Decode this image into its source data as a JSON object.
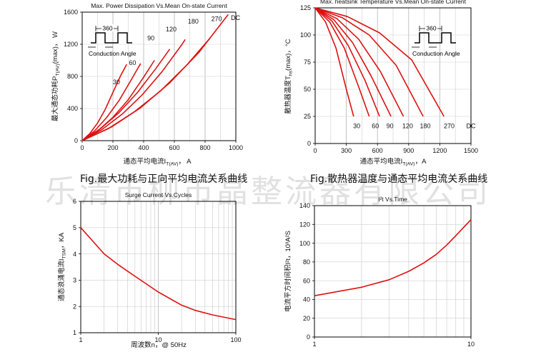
{
  "watermark": "乐清市柳市晶整流器有限公司",
  "captions": {
    "left": "Fig.最大功耗与正向平均电流关系曲线",
    "right": "Fig.散热器温度与通态平均电流关系曲线"
  },
  "chart_data": [
    {
      "id": "power",
      "type": "line",
      "title": "Max. Power Dissipation Vs.Mean On-state Current",
      "xlabel": "通态平均电流IT(AV)， A",
      "ylabel": "最大通态功耗PT(AV)(max)， W",
      "xlim": [
        0,
        1000
      ],
      "ylim": [
        0,
        1600
      ],
      "xticks": [
        0,
        200,
        400,
        600,
        800,
        1000
      ],
      "yticks": [
        0,
        400,
        800,
        1200,
        1600
      ],
      "xscale": "linear",
      "series": [
        {
          "name": "30",
          "label_at": [
            250,
            440
          ],
          "x": [
            0,
            50,
            100,
            150,
            200,
            250,
            290
          ],
          "y": [
            0,
            90,
            220,
            390,
            600,
            810,
            950
          ]
        },
        {
          "name": "60",
          "label_at": [
            380,
            590
          ],
          "x": [
            0,
            80,
            160,
            240,
            320,
            380
          ],
          "y": [
            0,
            120,
            290,
            500,
            760,
            960
          ]
        },
        {
          "name": "90",
          "label_at": [
            530,
            780
          ],
          "x": [
            0,
            100,
            200,
            300,
            400,
            470
          ],
          "y": [
            0,
            120,
            290,
            510,
            790,
            1000
          ]
        },
        {
          "name": "120",
          "label_at": [
            680,
            850
          ],
          "x": [
            0,
            120,
            240,
            360,
            480,
            570
          ],
          "y": [
            0,
            150,
            350,
            600,
            900,
            1140
          ]
        },
        {
          "name": "180",
          "label_at": [
            860,
            910
          ],
          "x": [
            0,
            130,
            260,
            390,
            520,
            650,
            670
          ],
          "y": [
            0,
            140,
            330,
            570,
            860,
            1200,
            1260
          ]
        },
        {
          "name": "270",
          "label_at": [
            1050,
            930
          ],
          "x": [
            0,
            170,
            340,
            510,
            680,
            820,
            830
          ],
          "y": [
            0,
            150,
            360,
            620,
            940,
            1250,
            1270
          ]
        },
        {
          "name": "DC",
          "label_at": [
            1210,
            940
          ],
          "x": [
            0,
            190,
            380,
            570,
            760,
            950
          ],
          "y": [
            0,
            170,
            410,
            720,
            1100,
            1570
          ]
        }
      ],
      "inset": {
        "angle_text": "360",
        "label": "Conduction Angle"
      }
    },
    {
      "id": "temp",
      "type": "line",
      "title": "Max. heatsink Temperature Vs.Mean On-state Current",
      "xlabel": "通态平均电流IT(AV)，A",
      "ylabel": "散热器温度Ths(max)，°C",
      "xlim": [
        0,
        1500
      ],
      "ylim": [
        0,
        125
      ],
      "xticks": [
        0,
        300,
        600,
        900,
        1200,
        1500
      ],
      "yticks": [
        0,
        25,
        50,
        75,
        100,
        125
      ],
      "xscale": "linear",
      "series": [
        {
          "name": "30",
          "x": [
            0,
            100,
            200,
            300,
            370
          ],
          "y": [
            125,
            112,
            88,
            50,
            25
          ]
        },
        {
          "name": "60",
          "x": [
            0,
            140,
            280,
            420,
            520
          ],
          "y": [
            125,
            112,
            88,
            52,
            25
          ]
        },
        {
          "name": "90",
          "x": [
            0,
            160,
            320,
            480,
            620
          ],
          "y": [
            125,
            113,
            90,
            58,
            25
          ]
        },
        {
          "name": "120",
          "x": [
            0,
            180,
            360,
            540,
            730
          ],
          "y": [
            125,
            114,
            93,
            62,
            25
          ]
        },
        {
          "name": "180",
          "x": [
            0,
            210,
            420,
            630,
            850
          ],
          "y": [
            125,
            115,
            96,
            66,
            25
          ]
        },
        {
          "name": "270",
          "x": [
            0,
            260,
            520,
            780,
            1040
          ],
          "y": [
            125,
            116,
            100,
            72,
            25
          ]
        },
        {
          "name": "DC",
          "x": [
            0,
            310,
            620,
            930,
            1240
          ],
          "y": [
            125,
            117,
            102,
            77,
            25
          ]
        }
      ],
      "series_labels": [
        {
          "text": "30",
          "at": [
            400,
            14
          ]
        },
        {
          "text": "60",
          "at": [
            580,
            14
          ]
        },
        {
          "text": "90",
          "at": [
            720,
            14
          ]
        },
        {
          "text": "120",
          "at": [
            890,
            14
          ]
        },
        {
          "text": "180",
          "at": [
            1060,
            14
          ]
        },
        {
          "text": "270",
          "at": [
            1290,
            14
          ]
        },
        {
          "text": "DC",
          "at": [
            1500,
            14
          ]
        }
      ],
      "inset": {
        "angle_text": "360",
        "label": "Conduction Angle"
      }
    },
    {
      "id": "surge",
      "type": "line",
      "title": "Surge Current Vs.Cycles",
      "xlabel": "周波数n，@ 50Hz",
      "ylabel": "通态浪涌电流ITSM，KA",
      "xlim": [
        1,
        100
      ],
      "ylim": [
        1,
        6
      ],
      "xticks": [
        1,
        10,
        100
      ],
      "yticks": [
        1,
        2,
        3,
        4,
        5,
        6
      ],
      "xscale": "log",
      "series": [
        {
          "name": "ITSM",
          "x": [
            1,
            2,
            3,
            5,
            10,
            20,
            30,
            50,
            100
          ],
          "y": [
            5.0,
            4.0,
            3.6,
            3.15,
            2.55,
            2.05,
            1.85,
            1.68,
            1.5
          ]
        }
      ]
    },
    {
      "id": "i2t",
      "type": "line",
      "title": "I²t Vs.Time",
      "xlabel": "",
      "ylabel": "电流平方时间积I²t，10³A²S",
      "xlim": [
        1,
        10
      ],
      "ylim": [
        0,
        140
      ],
      "xticks": [
        1,
        10
      ],
      "yticks": [
        0,
        20,
        40,
        60,
        80,
        100,
        120,
        140
      ],
      "xscale": "log",
      "series": [
        {
          "name": "I2t",
          "x": [
            1,
            2,
            3,
            4,
            5,
            6,
            7,
            8,
            9,
            10
          ],
          "y": [
            44,
            53,
            61,
            70,
            79,
            88,
            98,
            108,
            117,
            125
          ]
        }
      ]
    }
  ]
}
